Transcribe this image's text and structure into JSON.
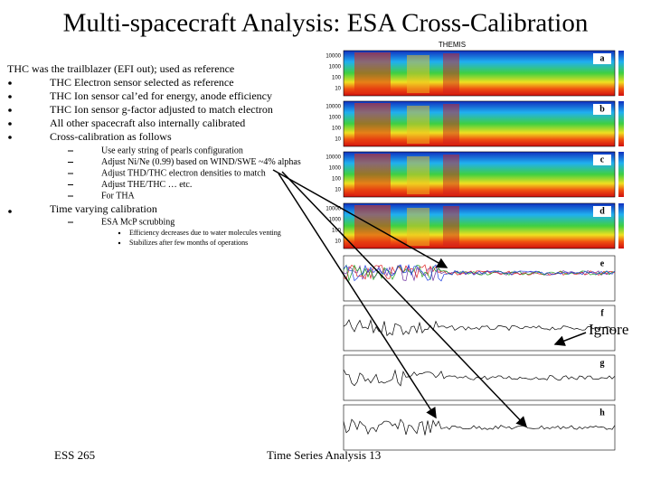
{
  "title": "Multi-spacecraft Analysis: ESA Cross-Calibration",
  "content": {
    "intro": "THC was the trailblazer (EFI out); used as reference",
    "bullets": [
      "THC Electron sensor selected as reference",
      "THC Ion sensor cal’ed for energy, anode efficiency",
      "THC Ion sensor g-factor adjusted to match electron",
      "All other spacecraft also internally calibrated",
      "Cross-calibration as follows"
    ],
    "sub_items": [
      "Use early string of pearls configuration",
      "Adjust Ni/Ne (0.99) based on WIND/SWE ~4% alphas",
      "Adjust THD/THC electron densities to match",
      "Adjust THE/THC … etc.",
      "For THA"
    ],
    "bullet2": "Time varying calibration",
    "sub_item2": "ESA McP scrubbing",
    "sub_sub_items": [
      "Efficiency decreases due to water molecules venting",
      "Stabilizes after few months of operations"
    ]
  },
  "figure": {
    "title": "THEMIS",
    "panels": [
      "a",
      "b",
      "c",
      "d",
      "e",
      "f",
      "g",
      "h"
    ],
    "tick_labels": [
      "10000",
      "1000",
      "100",
      "10"
    ]
  },
  "annotation": "Ignore",
  "footer": {
    "left": "ESS 265",
    "center": "Time Series Analysis 13"
  }
}
